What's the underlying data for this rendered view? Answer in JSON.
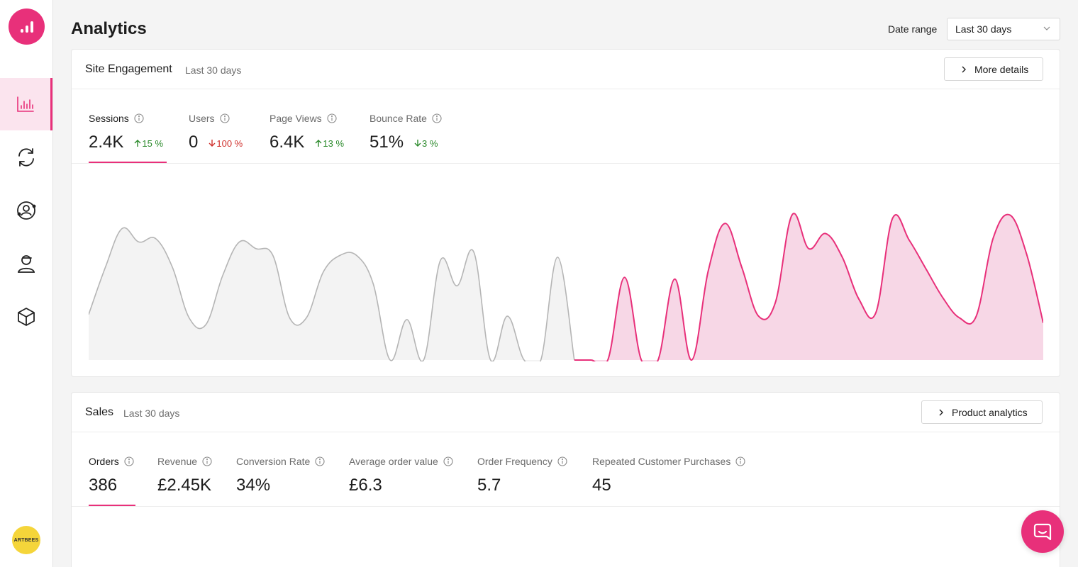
{
  "page": {
    "title": "Analytics"
  },
  "date_range": {
    "label": "Date range",
    "value": "Last 30 days"
  },
  "sidebar": {
    "avatar_text": "ARTBEES"
  },
  "engagement": {
    "title": "Site Engagement",
    "subtitle": "Last 30 days",
    "button": "More details",
    "metrics": [
      {
        "label": "Sessions",
        "value": "2.4K",
        "change": "15 %",
        "direction": "up"
      },
      {
        "label": "Users",
        "value": "0",
        "change": "100 %",
        "direction": "down"
      },
      {
        "label": "Page Views",
        "value": "6.4K",
        "change": "13 %",
        "direction": "up"
      },
      {
        "label": "Bounce Rate",
        "value": "51%",
        "change": "3 %",
        "direction": "down"
      }
    ]
  },
  "sales": {
    "title": "Sales",
    "subtitle": "Last 30 days",
    "button": "Product analytics",
    "metrics": [
      {
        "label": "Orders",
        "value": "386"
      },
      {
        "label": "Revenue",
        "value": "£2.45K"
      },
      {
        "label": "Conversion Rate",
        "value": "34%"
      },
      {
        "label": "Average order value",
        "value": "£6.3"
      },
      {
        "label": "Order Frequency",
        "value": "5.7"
      },
      {
        "label": "Repeated Customer Purchases",
        "value": "45"
      }
    ]
  },
  "colors": {
    "accent": "#e8307a",
    "accent_fill": "#f7d7e6",
    "previous_line": "#b5b5b5",
    "previous_fill": "#f3f3f3",
    "up": "#2c8a2c",
    "down": "#d0312d"
  },
  "chart_data": {
    "type": "area",
    "series": [
      {
        "values": [
          0.27,
          0.55,
          0.78,
          0.7,
          0.72,
          0.55,
          0.25,
          0.21,
          0.5,
          0.7,
          0.66,
          0.62,
          0.25,
          0.25,
          0.52,
          0.62,
          0.62,
          0.45,
          0.0,
          0.24,
          0.0,
          0.59,
          0.44,
          0.64,
          0.0,
          0.26,
          0.0,
          0.0,
          0.61,
          0.0
        ]
      },
      {
        "values": [
          0.0,
          0.0,
          0.49,
          0.0,
          0.0,
          0.48,
          0.0,
          0.53,
          0.81,
          0.55,
          0.26,
          0.34,
          0.86,
          0.66,
          0.75,
          0.61,
          0.36,
          0.28,
          0.84,
          0.71,
          0.54,
          0.37,
          0.25,
          0.26,
          0.72,
          0.86,
          0.63,
          0.22
        ]
      }
    ]
  }
}
